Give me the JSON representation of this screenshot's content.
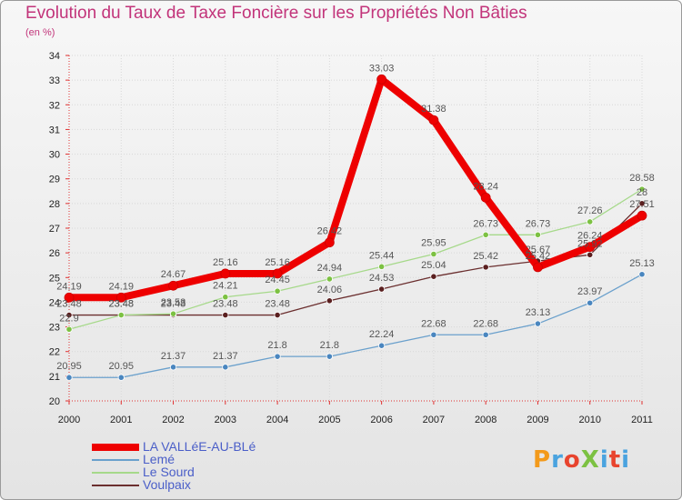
{
  "title": "Evolution du Taux de Taxe Foncière sur les Propriétés Non Bâties",
  "subtitle": "(en %)",
  "logo": "ProXiti",
  "logo_colors": [
    "#f39a1b",
    "#4aa3df",
    "#e8442e",
    "#7cc142",
    "#4aa3df",
    "#e8442e",
    "#4aa3df"
  ],
  "chart_data": {
    "type": "line",
    "title": "Evolution du Taux de Taxe Foncière sur les Propriétés Non Bâties",
    "ylabel": "(en %)",
    "xlabel": "",
    "x": [
      "2000",
      "2001",
      "2002",
      "2003",
      "2004",
      "2005",
      "2006",
      "2007",
      "2008",
      "2009",
      "2010",
      "2011"
    ],
    "ylim": [
      20,
      34
    ],
    "yticks": [
      "20",
      "21",
      "22",
      "23",
      "24",
      "25",
      "26",
      "27",
      "28",
      "29",
      "30",
      "31",
      "32",
      "33",
      "34"
    ],
    "grid": true,
    "series": [
      {
        "name": "Voulpaix",
        "color": "#6b2f2f",
        "dot": "#5a1f1f",
        "width": 1.3,
        "values": [
          23.48,
          23.48,
          23.48,
          23.48,
          23.48,
          24.06,
          24.53,
          25.04,
          25.42,
          25.67,
          25.92,
          28.0
        ],
        "labels": [
          "23.48",
          "23.48",
          "23.48",
          "23.48",
          "23.48",
          "24.06",
          "24.53",
          "25.04",
          "25.42",
          "25.67",
          "25.92",
          "28"
        ]
      },
      {
        "name": "Le Sourd",
        "color": "#a6d98a",
        "dot": "#7cc142",
        "width": 1.3,
        "values": [
          22.9,
          23.48,
          23.53,
          24.21,
          24.45,
          24.94,
          25.44,
          25.95,
          26.73,
          26.73,
          27.26,
          28.58
        ],
        "labels": [
          "22.9",
          "23.48",
          "23.53",
          "24.21",
          "24.45",
          "24.94",
          "25.44",
          "25.95",
          "26.73",
          "26.73",
          "27.26",
          "28.58"
        ]
      },
      {
        "name": "Lemé",
        "color": "#6aa0cc",
        "dot": "#4a86bf",
        "width": 1.3,
        "values": [
          20.95,
          20.95,
          21.37,
          21.37,
          21.8,
          21.8,
          22.24,
          22.68,
          22.68,
          23.13,
          23.97,
          25.13
        ],
        "labels": [
          "20.95",
          "20.95",
          "21.37",
          "21.37",
          "21.8",
          "21.8",
          "22.24",
          "22.68",
          "22.68",
          "23.13",
          "23.97",
          "25.13"
        ]
      },
      {
        "name": "LA VALLéE-AU-BLé",
        "color": "#ee0000",
        "dot": "#ee0000",
        "width": 8,
        "values": [
          24.19,
          24.19,
          24.67,
          25.16,
          25.16,
          26.42,
          33.03,
          31.38,
          28.24,
          25.42,
          26.24,
          27.51
        ],
        "labels": [
          "24.19",
          "24.19",
          "24.67",
          "25.16",
          "25.16",
          "26.42",
          "33.03",
          "31.38",
          "28.24",
          "25.42",
          "26.24",
          "27.51"
        ]
      }
    ],
    "legend": [
      "LA VALLéE-AU-BLé",
      "Lemé",
      "Le Sourd",
      "Voulpaix"
    ],
    "legend_placement": "bottom-left"
  }
}
